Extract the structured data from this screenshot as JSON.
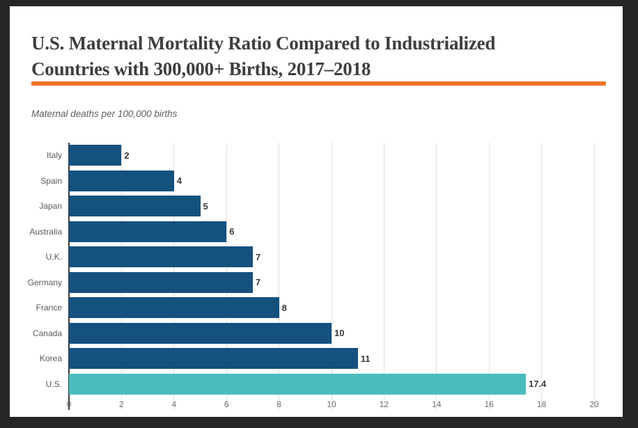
{
  "frame": {
    "background_color": "#262626",
    "card_background": "#ffffff"
  },
  "header": {
    "title": "U.S. Maternal Mortality Ratio Compared to Industrialized Countries with 300,000+ Births, 2017–2018",
    "accent_rule_color": "#ed7523"
  },
  "subtitle": "Maternal deaths per 100,000 births",
  "chart_data": {
    "type": "bar",
    "orientation": "horizontal",
    "title": "U.S. Maternal Mortality Ratio Compared to Industrialized Countries with 300,000+ Births, 2017–2018",
    "xlabel": "Maternal deaths per 100,000 births",
    "ylabel": "",
    "categories": [
      "Italy",
      "Spain",
      "Japan",
      "Australia",
      "U.K.",
      "Germany",
      "France",
      "Canada",
      "Korea",
      "U.S."
    ],
    "values": [
      2,
      4,
      5,
      6,
      7,
      7,
      8,
      10,
      11,
      17.4
    ],
    "value_labels": [
      "2",
      "4",
      "5",
      "6",
      "7",
      "7",
      "8",
      "10",
      "11",
      "17.4"
    ],
    "bar_color": "#15517f",
    "highlight_index": 9,
    "highlight_color": "#4bbcbc",
    "xlim": [
      0,
      20
    ],
    "x_ticks": [
      0,
      2,
      4,
      6,
      8,
      10,
      12,
      14,
      16,
      18,
      20
    ],
    "grid": true,
    "gridline_color": "#e0e0e0",
    "axis_line_color": "#3c3c3c",
    "legend": "none"
  }
}
